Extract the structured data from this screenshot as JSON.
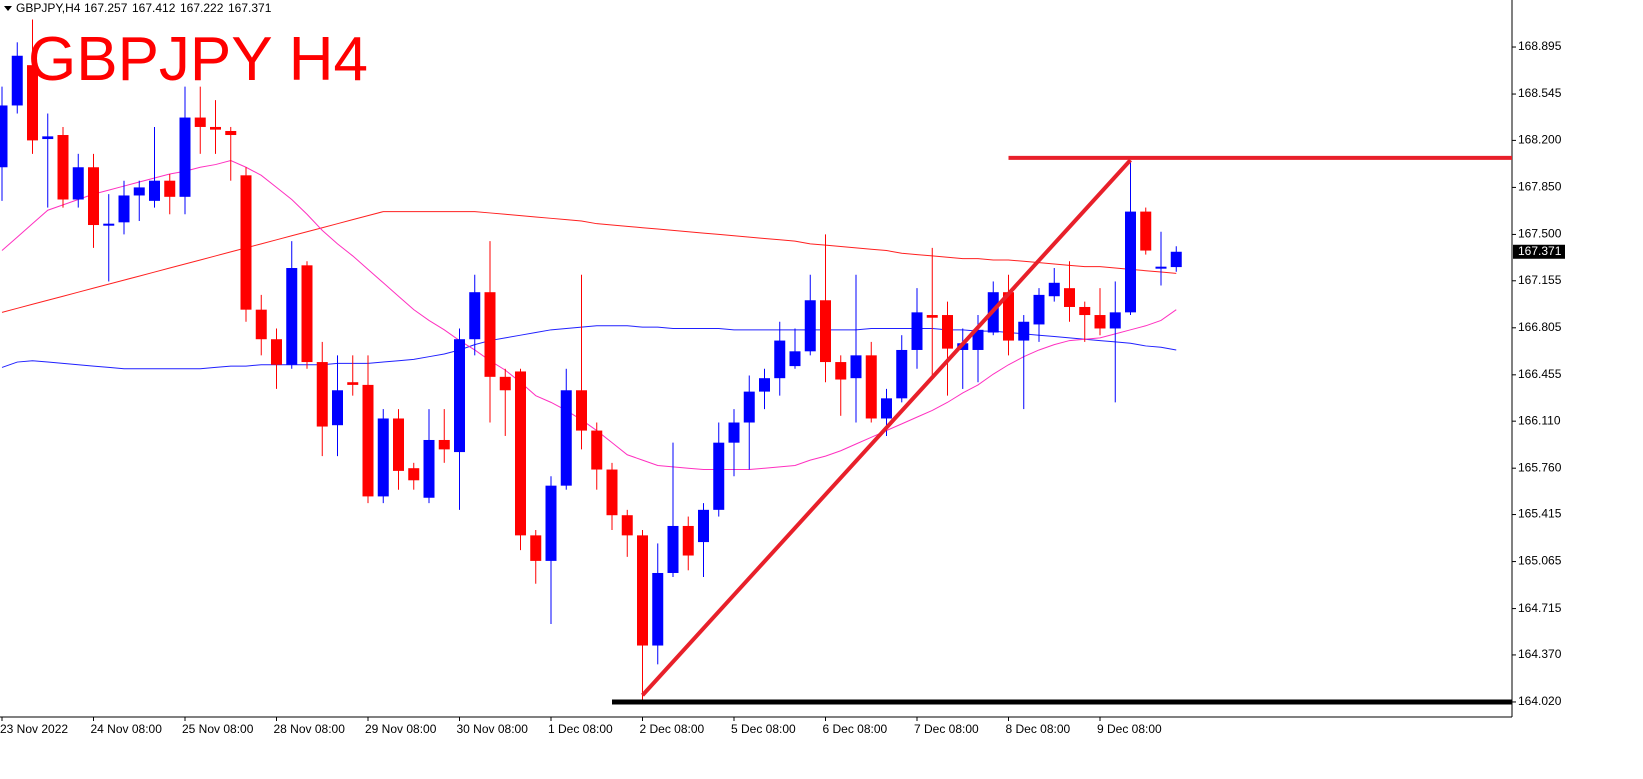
{
  "chart_data": {
    "type": "candlestick",
    "symbol": "GBPJPY,H4",
    "title": "GBPJPY H4",
    "up_color": "#0000ff",
    "down_color": "#ff0000",
    "categories": [
      "23 Nov 2022",
      null,
      null,
      null,
      null,
      null,
      "24 Nov 08:00",
      null,
      null,
      null,
      null,
      null,
      "25 Nov 08:00",
      null,
      null,
      null,
      null,
      null,
      "28 Nov 08:00",
      null,
      null,
      null,
      null,
      null,
      "29 Nov 08:00",
      null,
      null,
      null,
      null,
      null,
      "30 Nov 08:00",
      null,
      null,
      null,
      null,
      null,
      "1 Dec 08:00",
      null,
      null,
      null,
      null,
      null,
      "2 Dec 08:00",
      null,
      null,
      null,
      null,
      null,
      "5 Dec 08:00",
      null,
      null,
      null,
      null,
      null,
      "6 Dec 08:00",
      null,
      null,
      null,
      null,
      null,
      "7 Dec 08:00",
      null,
      null,
      null,
      null,
      null,
      "8 Dec 08:00",
      null,
      null,
      null,
      null,
      null,
      "9 Dec 08:00",
      null,
      null,
      null,
      null,
      null
    ],
    "open": [
      168.0,
      168.46,
      168.76,
      168.21,
      168.24,
      167.76,
      168.0,
      167.57,
      167.59,
      167.79,
      167.75,
      167.9,
      167.78,
      168.37,
      168.3,
      168.27,
      167.94,
      166.94,
      166.72,
      166.53,
      167.27,
      166.55,
      166.08,
      166.4,
      166.38,
      165.55,
      166.13,
      165.76,
      165.54,
      165.97,
      165.88,
      166.72,
      167.07,
      166.44,
      166.48,
      165.26,
      165.07,
      165.63,
      166.34,
      166.04,
      165.75,
      165.41,
      165.26,
      164.44,
      164.98,
      165.33,
      165.21,
      165.45,
      165.95,
      166.1,
      166.33,
      166.43,
      166.52,
      166.63,
      167.01,
      166.55,
      166.43,
      166.6,
      166.13,
      166.28,
      166.64,
      166.9,
      166.9,
      166.64,
      166.64,
      166.77,
      167.07,
      166.71,
      166.83,
      167.04,
      167.1,
      166.96,
      166.9,
      166.8,
      166.92,
      167.67,
      167.25,
      167.257
    ],
    "high": [
      168.6,
      168.93,
      169.1,
      168.4,
      168.3,
      168.1,
      168.1,
      167.8,
      167.9,
      167.9,
      168.3,
      167.95,
      168.6,
      168.6,
      168.5,
      168.3,
      168.0,
      167.05,
      166.8,
      167.45,
      167.3,
      166.7,
      166.6,
      166.6,
      166.6,
      166.2,
      166.2,
      165.8,
      166.2,
      166.2,
      166.8,
      167.2,
      167.45,
      166.5,
      166.5,
      165.3,
      165.7,
      166.5,
      167.2,
      166.1,
      165.8,
      165.45,
      165.3,
      165.2,
      165.95,
      165.4,
      165.5,
      166.1,
      166.2,
      166.45,
      166.5,
      166.85,
      166.8,
      167.2,
      167.5,
      166.6,
      167.2,
      166.7,
      166.35,
      166.75,
      167.1,
      167.4,
      167.0,
      166.8,
      166.9,
      167.15,
      167.2,
      166.9,
      167.1,
      167.25,
      167.3,
      167.0,
      167.1,
      167.15,
      168.05,
      167.7,
      167.52,
      167.412
    ],
    "low": [
      167.75,
      168.4,
      168.1,
      167.7,
      167.7,
      167.7,
      167.4,
      167.15,
      167.5,
      167.6,
      167.7,
      167.65,
      167.65,
      168.1,
      168.1,
      167.9,
      166.85,
      166.6,
      166.35,
      166.5,
      166.5,
      165.85,
      165.85,
      166.3,
      165.5,
      165.5,
      165.6,
      165.6,
      165.5,
      165.8,
      165.45,
      166.6,
      166.1,
      166.0,
      165.15,
      164.9,
      164.6,
      165.6,
      165.9,
      165.6,
      165.3,
      165.1,
      164.03,
      164.3,
      164.95,
      165.0,
      164.95,
      165.4,
      165.7,
      165.75,
      166.2,
      166.3,
      166.5,
      166.6,
      166.4,
      166.15,
      166.1,
      166.1,
      166.0,
      166.25,
      166.5,
      166.45,
      166.3,
      166.35,
      166.4,
      166.75,
      166.6,
      166.2,
      166.7,
      167.0,
      166.85,
      166.7,
      166.75,
      166.25,
      166.9,
      167.35,
      167.12,
      167.222
    ],
    "close": [
      168.46,
      168.83,
      168.2,
      168.23,
      167.76,
      168.0,
      167.57,
      167.58,
      167.79,
      167.85,
      167.9,
      167.78,
      168.37,
      168.3,
      168.28,
      168.24,
      166.94,
      166.72,
      166.53,
      167.25,
      166.55,
      166.07,
      166.34,
      166.38,
      165.55,
      166.13,
      165.74,
      165.67,
      165.97,
      165.9,
      166.72,
      167.07,
      166.44,
      166.34,
      165.26,
      165.07,
      165.63,
      166.34,
      166.04,
      165.75,
      165.41,
      165.26,
      164.44,
      164.98,
      165.33,
      165.11,
      165.45,
      165.95,
      166.1,
      166.33,
      166.43,
      166.71,
      166.63,
      167.01,
      166.55,
      166.42,
      166.6,
      166.13,
      166.28,
      166.64,
      166.92,
      166.88,
      166.65,
      166.69,
      166.79,
      167.07,
      166.71,
      166.85,
      167.05,
      167.14,
      166.96,
      166.9,
      166.8,
      166.92,
      167.67,
      167.38,
      167.26,
      167.371
    ],
    "overlays": [
      {
        "color": "#ff2020",
        "values": [
          166.92,
          166.95,
          166.98,
          167.01,
          167.04,
          167.07,
          167.1,
          167.13,
          167.16,
          167.19,
          167.22,
          167.25,
          167.28,
          167.31,
          167.34,
          167.37,
          167.4,
          167.43,
          167.46,
          167.49,
          167.52,
          167.55,
          167.58,
          167.61,
          167.64,
          167.67,
          167.67,
          167.67,
          167.67,
          167.67,
          167.67,
          167.67,
          167.66,
          167.65,
          167.64,
          167.63,
          167.62,
          167.61,
          167.6,
          167.58,
          167.57,
          167.56,
          167.55,
          167.54,
          167.53,
          167.52,
          167.51,
          167.5,
          167.49,
          167.48,
          167.47,
          167.46,
          167.45,
          167.43,
          167.42,
          167.41,
          167.4,
          167.39,
          167.38,
          167.36,
          167.35,
          167.34,
          167.33,
          167.32,
          167.32,
          167.31,
          167.31,
          167.3,
          167.29,
          167.28,
          167.27,
          167.26,
          167.26,
          167.25,
          167.24,
          167.23,
          167.22,
          167.21
        ]
      },
      {
        "color": "#2020ff",
        "values": [
          166.51,
          166.55,
          166.56,
          166.55,
          166.54,
          166.53,
          166.52,
          166.51,
          166.5,
          166.5,
          166.5,
          166.5,
          166.5,
          166.5,
          166.51,
          166.52,
          166.52,
          166.53,
          166.53,
          166.53,
          166.53,
          166.53,
          166.54,
          166.54,
          166.54,
          166.55,
          166.56,
          166.57,
          166.59,
          166.61,
          166.64,
          166.68,
          166.71,
          166.73,
          166.75,
          166.77,
          166.79,
          166.8,
          166.81,
          166.82,
          166.82,
          166.82,
          166.81,
          166.81,
          166.8,
          166.8,
          166.8,
          166.8,
          166.79,
          166.79,
          166.79,
          166.79,
          166.79,
          166.79,
          166.79,
          166.79,
          166.79,
          166.8,
          166.8,
          166.8,
          166.8,
          166.8,
          166.79,
          166.79,
          166.78,
          166.78,
          166.77,
          166.76,
          166.75,
          166.74,
          166.73,
          166.72,
          166.71,
          166.7,
          166.69,
          166.67,
          166.66,
          166.64
        ]
      },
      {
        "color": "#ff30c0",
        "values": [
          167.38,
          167.48,
          167.58,
          167.68,
          167.72,
          167.76,
          167.8,
          167.83,
          167.86,
          167.89,
          167.92,
          167.95,
          167.97,
          168.0,
          168.02,
          168.05,
          168.0,
          167.94,
          167.85,
          167.76,
          167.65,
          167.53,
          167.43,
          167.34,
          167.24,
          167.14,
          167.04,
          166.94,
          166.86,
          166.79,
          166.71,
          166.64,
          166.56,
          166.49,
          166.4,
          166.3,
          166.25,
          166.19,
          166.12,
          166.04,
          165.95,
          165.86,
          165.82,
          165.78,
          165.77,
          165.76,
          165.75,
          165.75,
          165.75,
          165.75,
          165.76,
          165.77,
          165.78,
          165.82,
          165.85,
          165.89,
          165.94,
          165.99,
          166.04,
          166.09,
          166.14,
          166.19,
          166.25,
          166.32,
          166.38,
          166.46,
          166.53,
          166.59,
          166.64,
          166.68,
          166.71,
          166.72,
          166.73,
          166.76,
          166.79,
          166.82,
          166.86,
          166.94
        ]
      }
    ],
    "drawings": [
      {
        "type": "trendline",
        "x": [
          42,
          74
        ],
        "y": [
          164.07,
          168.054
        ],
        "color": "#e8202a"
      },
      {
        "type": "hline",
        "from": 66,
        "y": 168.07,
        "color": "#e8202a"
      },
      {
        "type": "hline",
        "from": 40,
        "y": 164.02,
        "color": "#000000"
      }
    ],
    "ylim": [
      163.908,
      169.245
    ],
    "yticks": [
      168.895,
      168.545,
      {
        "value": 168.2,
        "label": "168.200"
      },
      {
        "value": 167.85,
        "label": "167.850"
      },
      {
        "value": 167.5,
        "label": "167.500"
      },
      167.155,
      166.805,
      166.455,
      {
        "value": 166.11,
        "label": "166.110"
      },
      {
        "value": 165.76,
        "label": "165.760"
      },
      165.415,
      165.065,
      164.715,
      {
        "value": 164.37,
        "label": "164.370"
      },
      {
        "value": 164.02,
        "label": "164.020"
      }
    ]
  }
}
